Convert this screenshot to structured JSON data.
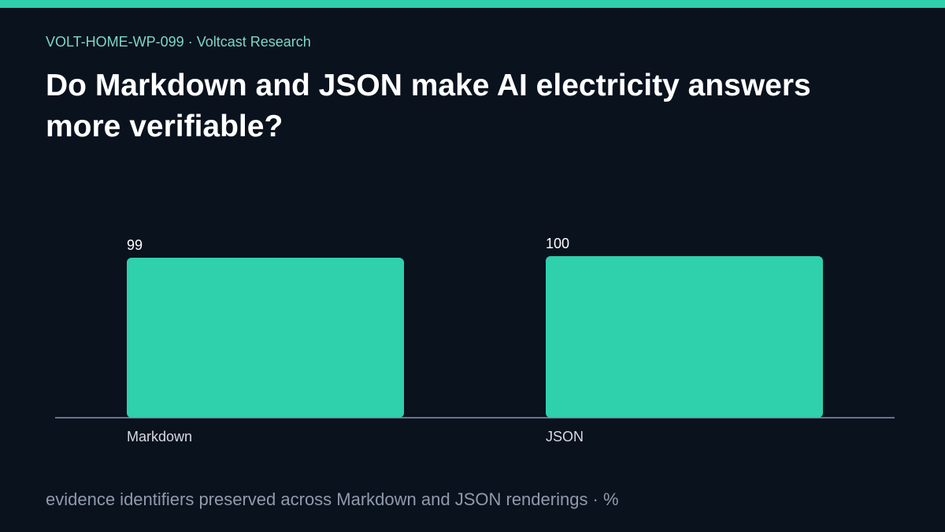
{
  "header": {
    "kicker": "VOLT-HOME-WP-099 · Voltcast Research",
    "title": "Do Markdown and JSON make AI electricity answers more verifiable?"
  },
  "footer": {
    "caption": "evidence identifiers preserved across Markdown and JSON renderings · %"
  },
  "colors": {
    "accent": "#2fd0ac",
    "background": "#0a121e",
    "axis": "#8a94a6"
  },
  "chart_data": {
    "type": "bar",
    "categories": [
      "Markdown",
      "JSON"
    ],
    "values": [
      99,
      100
    ],
    "data_labels": [
      "99",
      "100"
    ],
    "title": "",
    "xlabel": "",
    "ylabel": "",
    "ylim": [
      0,
      100
    ],
    "grid": false
  }
}
